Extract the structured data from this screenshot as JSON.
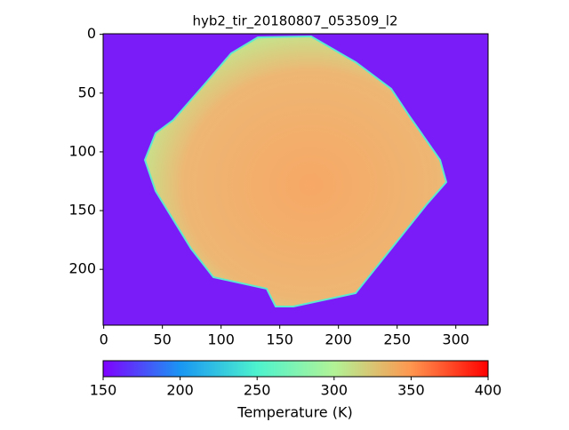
{
  "chart_data": {
    "type": "image",
    "title": "hyb2_tir_20180807_053509_l2",
    "xlim": [
      -0.5,
      327.5
    ],
    "xticks": [
      0,
      50,
      100,
      150,
      200,
      250,
      300
    ],
    "ylim": [
      247.5,
      -0.5
    ],
    "yticks": [
      0,
      50,
      100,
      150,
      200
    ],
    "colormap": "rainbow",
    "colorbar": {
      "label": "Temperature (K)",
      "clim": [
        150,
        400
      ],
      "ticks": [
        150,
        200,
        250,
        300,
        350,
        400
      ]
    }
  }
}
